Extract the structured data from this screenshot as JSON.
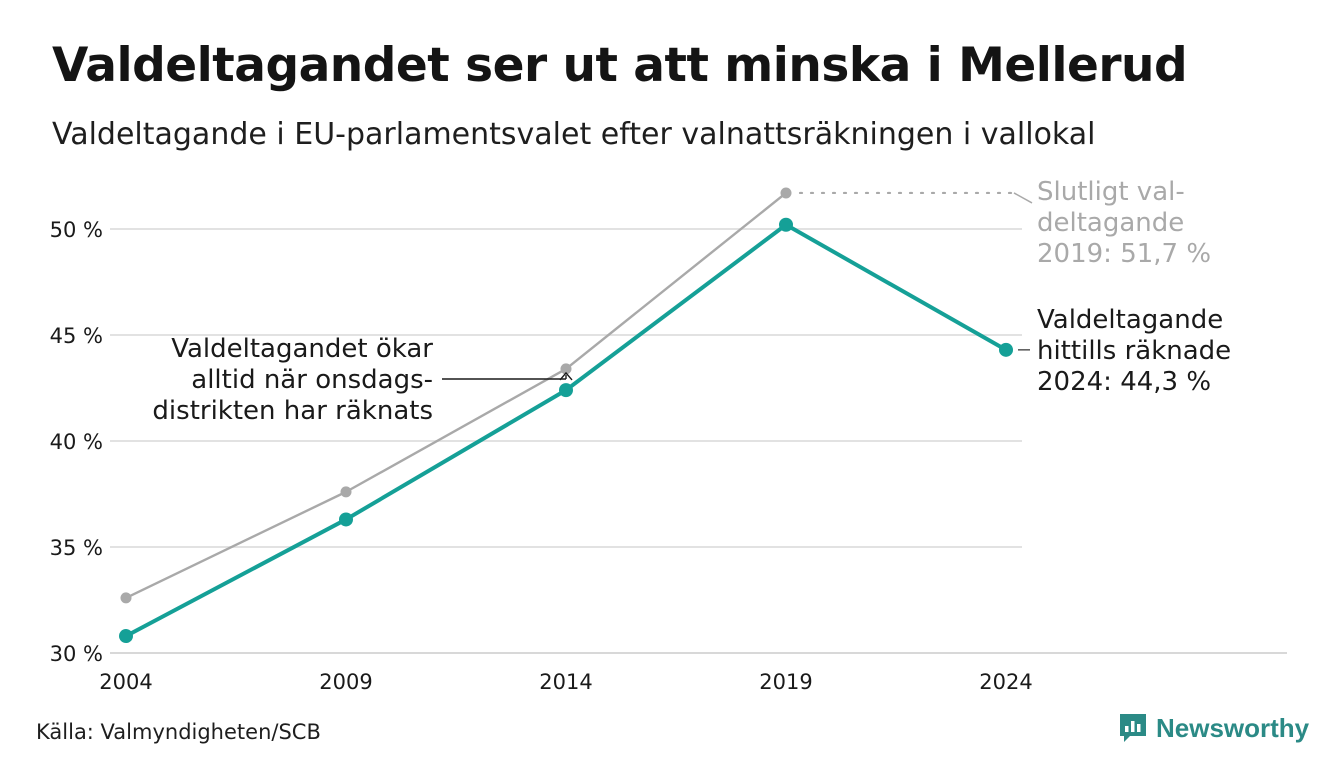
{
  "header": {
    "title": "Valdeltagandet ser ut att minska i Mellerud",
    "subtitle": "Valdeltagande i EU-parlamentsvalet efter valnattsräkningen i vallokal"
  },
  "footer": {
    "source": "Källa: Valmyndigheten/SCB",
    "brand": "Newsworthy"
  },
  "colors": {
    "preliminary": "#15a097",
    "final": "#a9a9a9",
    "grid": "#e2e2e2",
    "text": "#1a1a1a",
    "muted": "#a9a9a9"
  },
  "icons": {
    "brand": "bar-chart-icon"
  },
  "chart_data": {
    "type": "line",
    "x": [
      "2004",
      "2009",
      "2014",
      "2019",
      "2024"
    ],
    "y_ticks": [
      30,
      35,
      40,
      45,
      50
    ],
    "y_tick_labels": [
      "30 %",
      "35 %",
      "40 %",
      "45 %",
      "50 %"
    ],
    "ylim": [
      30,
      52
    ],
    "grid": true,
    "series": [
      {
        "key": "final",
        "values": [
          32.6,
          37.6,
          43.4,
          51.7,
          null
        ]
      },
      {
        "key": "preliminary",
        "values": [
          30.8,
          36.3,
          42.4,
          50.2,
          44.3
        ]
      }
    ],
    "annotations": {
      "final_2019": [
        "Slutligt val-",
        "deltagande",
        "2019: 51,7 %"
      ],
      "preliminary_2024": [
        "Valdeltagande",
        "hittills räknade",
        "2024: 44,3 %"
      ],
      "note_2014": [
        "Valdeltagandet ökar",
        "alltid när onsdags-",
        "distrikten har räknats"
      ]
    }
  }
}
